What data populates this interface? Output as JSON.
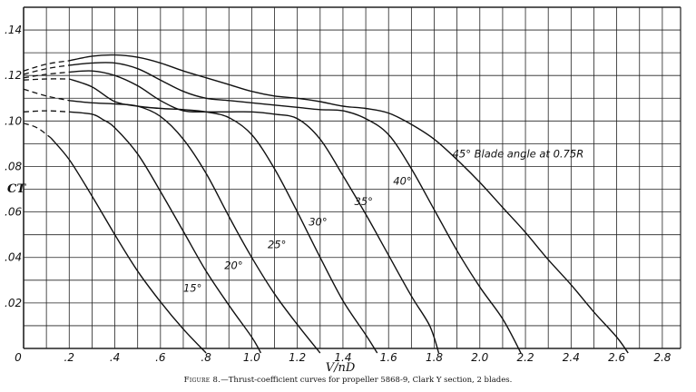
{
  "caption": {
    "figure_label": "Figure 8.",
    "text": "—Thrust-coefficient curves for propeller 5868-9, Clark Y section, 2 blades."
  },
  "chart_data": {
    "type": "line",
    "xlabel": "V/nD",
    "ylabel": "CT",
    "xlim": [
      0,
      2.88
    ],
    "ylim": [
      0,
      0.15
    ],
    "grid": true,
    "x_ticks": [
      {
        "value": 0,
        "label": "0"
      },
      {
        "value": 0.2,
        "label": ".2"
      },
      {
        "value": 0.4,
        "label": ".4"
      },
      {
        "value": 0.6,
        "label": ".6"
      },
      {
        "value": 0.8,
        "label": ".8"
      },
      {
        "value": 1.0,
        "label": "1.0"
      },
      {
        "value": 1.2,
        "label": "1.2"
      },
      {
        "value": 1.4,
        "label": "1.4"
      },
      {
        "value": 1.6,
        "label": "1.6"
      },
      {
        "value": 1.8,
        "label": "1.8"
      },
      {
        "value": 2.0,
        "label": "2.0"
      },
      {
        "value": 2.2,
        "label": "2.2"
      },
      {
        "value": 2.4,
        "label": "2.4"
      },
      {
        "value": 2.6,
        "label": "2.6"
      },
      {
        "value": 2.8,
        "label": "2.8"
      }
    ],
    "y_ticks": [
      {
        "value": 0.02,
        "label": ".02"
      },
      {
        "value": 0.04,
        "label": ".04"
      },
      {
        "value": 0.06,
        "label": ".06"
      },
      {
        "value": 0.08,
        "label": ".08"
      },
      {
        "value": 0.1,
        "label": ".10"
      },
      {
        "value": 0.12,
        "label": ".12"
      },
      {
        "value": 0.14,
        "label": ".14"
      }
    ],
    "series": [
      {
        "name": "15°",
        "extrapolated": [
          [
            0.0,
            0.099
          ],
          [
            0.06,
            0.097
          ],
          [
            0.12,
            0.0925
          ]
        ],
        "points": [
          [
            0.12,
            0.0925
          ],
          [
            0.2,
            0.083
          ],
          [
            0.3,
            0.067
          ],
          [
            0.4,
            0.05
          ],
          [
            0.5,
            0.034
          ],
          [
            0.6,
            0.0205
          ],
          [
            0.7,
            0.0085
          ],
          [
            0.8,
            -0.002
          ]
        ],
        "label": {
          "text": "15°",
          "at": [
            0.7,
            0.025
          ]
        }
      },
      {
        "name": "20°",
        "extrapolated": [
          [
            0.0,
            0.104
          ],
          [
            0.1,
            0.1045
          ],
          [
            0.2,
            0.104
          ]
        ],
        "points": [
          [
            0.2,
            0.104
          ],
          [
            0.3,
            0.103
          ],
          [
            0.35,
            0.1005
          ],
          [
            0.4,
            0.097
          ],
          [
            0.5,
            0.0855
          ],
          [
            0.6,
            0.069
          ],
          [
            0.7,
            0.0515
          ],
          [
            0.8,
            0.034
          ],
          [
            0.9,
            0.019
          ],
          [
            1.0,
            0.005
          ],
          [
            1.04,
            -0.002
          ]
        ],
        "label": {
          "text": "20°",
          "at": [
            0.88,
            0.035
          ]
        }
      },
      {
        "name": "25°",
        "extrapolated": [
          [
            0.0,
            0.114
          ],
          [
            0.1,
            0.111
          ],
          [
            0.2,
            0.109
          ]
        ],
        "points": [
          [
            0.2,
            0.109
          ],
          [
            0.3,
            0.108
          ],
          [
            0.4,
            0.1075
          ],
          [
            0.5,
            0.1065
          ],
          [
            0.6,
            0.102
          ],
          [
            0.7,
            0.092
          ],
          [
            0.8,
            0.077
          ],
          [
            0.9,
            0.058
          ],
          [
            1.0,
            0.04
          ],
          [
            1.1,
            0.024
          ],
          [
            1.2,
            0.0105
          ],
          [
            1.3,
            -0.002
          ]
        ],
        "label": {
          "text": "25°",
          "at": [
            1.07,
            0.044
          ]
        }
      },
      {
        "name": "30°",
        "extrapolated": [
          [
            0.0,
            0.118
          ],
          [
            0.1,
            0.1185
          ],
          [
            0.2,
            0.1185
          ]
        ],
        "points": [
          [
            0.2,
            0.1185
          ],
          [
            0.3,
            0.115
          ],
          [
            0.4,
            0.1085
          ],
          [
            0.5,
            0.1065
          ],
          [
            0.6,
            0.1055
          ],
          [
            0.7,
            0.105
          ],
          [
            0.8,
            0.104
          ],
          [
            0.9,
            0.1015
          ],
          [
            1.0,
            0.094
          ],
          [
            1.1,
            0.079
          ],
          [
            1.2,
            0.06
          ],
          [
            1.3,
            0.04
          ],
          [
            1.4,
            0.021
          ],
          [
            1.5,
            0.006
          ],
          [
            1.55,
            -0.002
          ]
        ],
        "label": {
          "text": "30°",
          "at": [
            1.25,
            0.054
          ]
        }
      },
      {
        "name": "35°",
        "extrapolated": [
          [
            0.0,
            0.119
          ],
          [
            0.1,
            0.1205
          ],
          [
            0.2,
            0.1215
          ]
        ],
        "points": [
          [
            0.2,
            0.1215
          ],
          [
            0.3,
            0.122
          ],
          [
            0.4,
            0.12
          ],
          [
            0.5,
            0.1155
          ],
          [
            0.6,
            0.109
          ],
          [
            0.7,
            0.1045
          ],
          [
            0.8,
            0.104
          ],
          [
            0.9,
            0.104
          ],
          [
            1.0,
            0.104
          ],
          [
            1.1,
            0.103
          ],
          [
            1.2,
            0.101
          ],
          [
            1.3,
            0.092
          ],
          [
            1.4,
            0.076
          ],
          [
            1.5,
            0.059
          ],
          [
            1.6,
            0.041
          ],
          [
            1.7,
            0.023
          ],
          [
            1.78,
            0.01
          ],
          [
            1.82,
            -0.002
          ]
        ],
        "label": {
          "text": "35°",
          "at": [
            1.45,
            0.063
          ]
        }
      },
      {
        "name": "40°",
        "extrapolated": [
          [
            0.0,
            0.1205
          ],
          [
            0.1,
            0.123
          ],
          [
            0.2,
            0.1245
          ]
        ],
        "points": [
          [
            0.2,
            0.1245
          ],
          [
            0.3,
            0.1255
          ],
          [
            0.4,
            0.1255
          ],
          [
            0.5,
            0.123
          ],
          [
            0.6,
            0.118
          ],
          [
            0.7,
            0.113
          ],
          [
            0.8,
            0.11
          ],
          [
            0.9,
            0.109
          ],
          [
            1.0,
            0.108
          ],
          [
            1.1,
            0.107
          ],
          [
            1.2,
            0.106
          ],
          [
            1.3,
            0.105
          ],
          [
            1.4,
            0.1045
          ],
          [
            1.5,
            0.101
          ],
          [
            1.6,
            0.094
          ],
          [
            1.7,
            0.079
          ],
          [
            1.8,
            0.061
          ],
          [
            1.9,
            0.043
          ],
          [
            2.0,
            0.027
          ],
          [
            2.1,
            0.013
          ],
          [
            2.18,
            -0.002
          ]
        ],
        "label": {
          "text": "40°",
          "at": [
            1.62,
            0.072
          ]
        }
      },
      {
        "name": "45°",
        "extrapolated": [
          [
            0.0,
            0.122
          ],
          [
            0.1,
            0.125
          ],
          [
            0.2,
            0.1265
          ]
        ],
        "points": [
          [
            0.2,
            0.1265
          ],
          [
            0.3,
            0.1285
          ],
          [
            0.4,
            0.129
          ],
          [
            0.5,
            0.128
          ],
          [
            0.6,
            0.1255
          ],
          [
            0.7,
            0.122
          ],
          [
            0.8,
            0.119
          ],
          [
            0.9,
            0.116
          ],
          [
            1.0,
            0.113
          ],
          [
            1.1,
            0.111
          ],
          [
            1.2,
            0.11
          ],
          [
            1.3,
            0.1085
          ],
          [
            1.4,
            0.1065
          ],
          [
            1.5,
            0.1055
          ],
          [
            1.6,
            0.1035
          ],
          [
            1.7,
            0.0985
          ],
          [
            1.8,
            0.092
          ],
          [
            1.9,
            0.083
          ],
          [
            2.0,
            0.073
          ],
          [
            2.1,
            0.062
          ],
          [
            2.2,
            0.051
          ],
          [
            2.3,
            0.039
          ],
          [
            2.4,
            0.028
          ],
          [
            2.5,
            0.016
          ],
          [
            2.6,
            0.005
          ],
          [
            2.65,
            -0.002
          ]
        ],
        "label": {
          "text": "45° Blade angle at 0.75R",
          "at": [
            1.88,
            0.084
          ]
        }
      }
    ]
  }
}
